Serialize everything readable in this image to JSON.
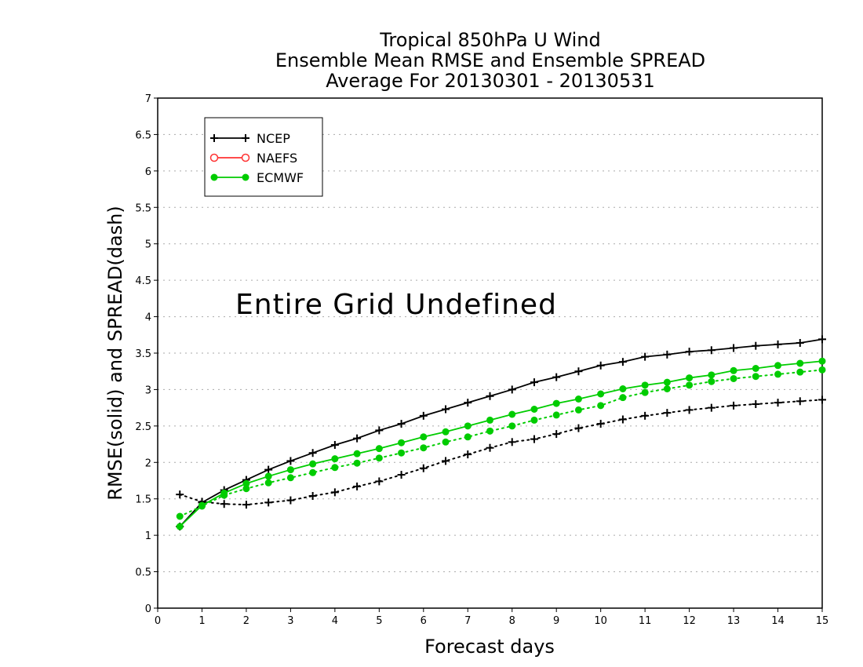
{
  "chart_data": {
    "type": "line",
    "title": [
      "Tropical 850hPa U Wind",
      "Ensemble Mean RMSE and Ensemble SPREAD",
      "Average For 20130301 - 20130531"
    ],
    "xlabel": "Forecast days",
    "ylabel": "RMSE(solid) and SPREAD(dash)",
    "xlim": [
      0,
      15
    ],
    "ylim": [
      0,
      7
    ],
    "xticks": [
      "0",
      "1",
      "2",
      "3",
      "4",
      "5",
      "6",
      "7",
      "8",
      "9",
      "10",
      "11",
      "12",
      "13",
      "14",
      "15"
    ],
    "yticks": [
      "0",
      "0.5",
      "1",
      "1.5",
      "2",
      "2.5",
      "3",
      "3.5",
      "4",
      "4.5",
      "5",
      "5.5",
      "6",
      "6.5",
      "7"
    ],
    "grid": true,
    "legend_position": "top-left",
    "annotation": "Entire Grid Undefined",
    "x": [
      0.5,
      1,
      1.5,
      2,
      2.5,
      3,
      3.5,
      4,
      4.5,
      5,
      5.5,
      6,
      6.5,
      7,
      7.5,
      8,
      8.5,
      9,
      9.5,
      10,
      10.5,
      11,
      11.5,
      12,
      12.5,
      13,
      13.5,
      14,
      14.5,
      15
    ],
    "series": [
      {
        "name": "NCEP",
        "color": "#000000",
        "marker": "plus",
        "rmse": [
          1.12,
          1.45,
          1.62,
          1.76,
          1.9,
          2.02,
          2.13,
          2.24,
          2.33,
          2.44,
          2.53,
          2.64,
          2.73,
          2.82,
          2.91,
          3.0,
          3.1,
          3.17,
          3.25,
          3.33,
          3.38,
          3.45,
          3.48,
          3.52,
          3.54,
          3.57,
          3.6,
          3.62,
          3.64,
          3.69
        ],
        "spread": [
          1.56,
          1.46,
          1.43,
          1.42,
          1.45,
          1.48,
          1.54,
          1.59,
          1.67,
          1.74,
          1.83,
          1.92,
          2.02,
          2.11,
          2.2,
          2.28,
          2.32,
          2.39,
          2.47,
          2.53,
          2.59,
          2.64,
          2.68,
          2.72,
          2.75,
          2.78,
          2.8,
          2.82,
          2.84,
          2.86
        ]
      },
      {
        "name": "NAEFS",
        "color": "#ff3333",
        "marker": "open-circle",
        "rmse": [],
        "spread": []
      },
      {
        "name": "ECMWF",
        "color": "#00cc00",
        "marker": "filled-circle",
        "rmse": [
          1.12,
          1.41,
          1.58,
          1.71,
          1.81,
          1.9,
          1.98,
          2.05,
          2.12,
          2.19,
          2.27,
          2.35,
          2.42,
          2.5,
          2.58,
          2.66,
          2.73,
          2.81,
          2.87,
          2.94,
          3.01,
          3.06,
          3.1,
          3.16,
          3.2,
          3.26,
          3.29,
          3.33,
          3.36,
          3.39
        ],
        "spread": [
          1.26,
          1.4,
          1.55,
          1.64,
          1.72,
          1.79,
          1.86,
          1.93,
          1.99,
          2.06,
          2.13,
          2.2,
          2.28,
          2.35,
          2.43,
          2.5,
          2.58,
          2.65,
          2.72,
          2.78,
          2.89,
          2.96,
          3.01,
          3.06,
          3.11,
          3.15,
          3.18,
          3.21,
          3.24,
          3.27
        ]
      }
    ]
  }
}
